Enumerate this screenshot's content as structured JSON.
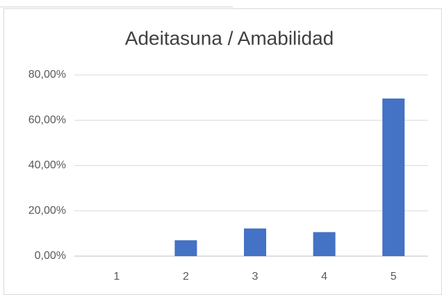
{
  "chart_data": {
    "type": "bar",
    "title": "Adeitasuna / Amabilidad",
    "categories": [
      "1",
      "2",
      "3",
      "4",
      "5"
    ],
    "values": [
      0,
      7.0,
      12.2,
      10.6,
      69.6
    ],
    "color": "#4472c4",
    "ylim": [
      0,
      80
    ],
    "yticks": [
      {
        "value": 0,
        "label": "0,00%"
      },
      {
        "value": 20,
        "label": "20,00%"
      },
      {
        "value": 40,
        "label": "40,00%"
      },
      {
        "value": 60,
        "label": "60,00%"
      },
      {
        "value": 80,
        "label": "80,00%"
      }
    ],
    "grid": true
  }
}
